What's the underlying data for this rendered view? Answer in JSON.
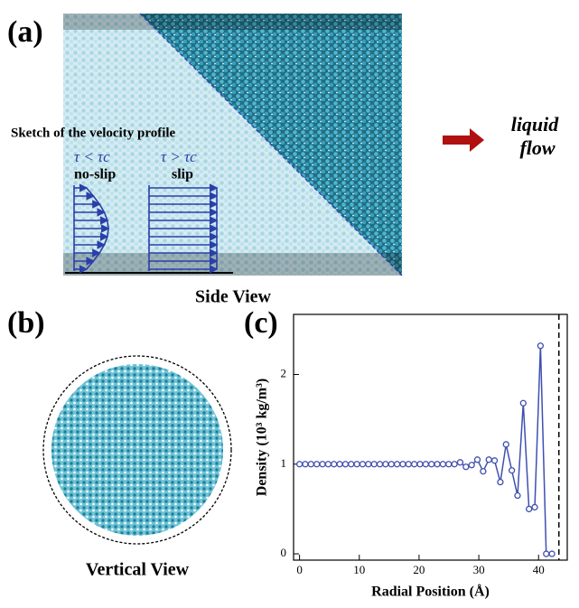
{
  "panels": {
    "a_label": "(a)",
    "b_label": "(b)",
    "c_label": "(c)",
    "sketch_title": "Sketch of the velocity profile",
    "noslip_condition": "τ < τc",
    "noslip_label": "no-slip",
    "slip_condition": "τ > τc",
    "slip_label": "slip",
    "flow_line1": "liquid",
    "flow_line2": "flow",
    "side_view": "Side View",
    "vertical_view": "Vertical View"
  },
  "chart_data": {
    "type": "line",
    "x_label": "Radial Position (Å)",
    "y_label": "Density (10³ kg/m³)",
    "x": [
      0,
      0.96,
      1.92,
      2.88,
      3.84,
      4.8,
      5.76,
      6.72,
      7.68,
      8.64,
      9.6,
      10.56,
      11.52,
      12.48,
      13.44,
      14.4,
      15.36,
      16.32,
      17.28,
      18.24,
      19.2,
      20.16,
      21.12,
      22.08,
      23.04,
      24,
      24.96,
      25.92,
      26.88,
      27.84,
      28.8,
      29.76,
      30.72,
      31.68,
      32.64,
      33.6,
      34.56,
      35.52,
      36.48,
      37.44,
      38.4,
      39.36,
      40.32,
      41.28,
      42.24
    ],
    "series": [
      {
        "color": "#3f4fb0",
        "values": [
          1,
          1,
          1,
          1,
          1,
          1,
          1,
          1,
          1,
          1,
          1,
          1,
          1,
          1,
          1,
          1,
          1,
          1,
          1,
          1,
          1,
          1,
          1,
          1,
          1,
          1,
          1,
          1,
          1.02,
          0.97,
          0.99,
          1.05,
          0.92,
          1.05,
          1.04,
          0.8,
          1.22,
          0.93,
          0.65,
          1.68,
          0.5,
          0.52,
          2.32,
          0,
          0
        ]
      }
    ],
    "vline": 43.4,
    "xlim": [
      -1,
      44.8
    ],
    "ylim": [
      -0.07,
      2.67
    ],
    "xticks": [
      0,
      10,
      20,
      30,
      40
    ],
    "yticks": [
      0,
      1,
      2
    ]
  }
}
